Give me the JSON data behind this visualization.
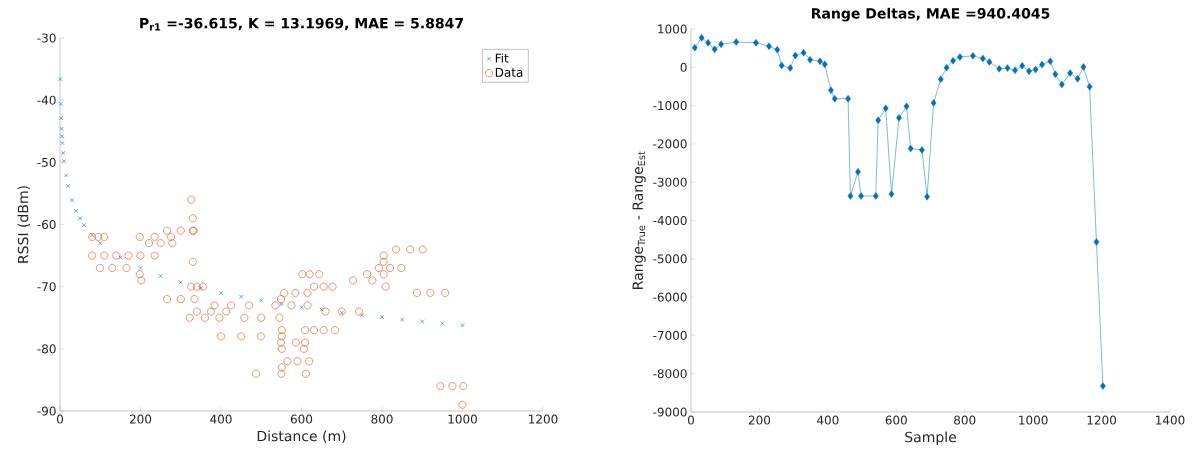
{
  "chart_data": [
    {
      "type": "scatter",
      "title": "P$_{r1}$ =-36.615, K = 13.1969, MAE = 5.8847",
      "xlabel": "Distance (m)",
      "ylabel": "RSSI (dBm)",
      "xlim": [
        0,
        1200
      ],
      "xticks": [
        0,
        200,
        400,
        600,
        800,
        1000,
        1200
      ],
      "ylim": [
        -90,
        -30
      ],
      "yticks": [
        -90,
        -80,
        -70,
        -60,
        -50,
        -40,
        -30
      ],
      "legend": "top right",
      "series": [
        {
          "name": "Fit",
          "type": "scatter",
          "marker": "cross",
          "color": "#0072bd",
          "x": [
            1,
            2,
            3,
            4,
            5,
            6,
            8,
            10,
            15,
            20,
            30,
            40,
            50,
            60,
            80,
            100,
            150,
            200,
            250,
            300,
            350,
            400,
            450,
            500,
            550,
            600,
            650,
            700,
            750,
            800,
            850,
            900,
            950,
            1000
          ],
          "values": [
            -36.6,
            -40.6,
            -42.9,
            -44.6,
            -45.8,
            -46.9,
            -48.5,
            -49.8,
            -52.1,
            -53.8,
            -56.1,
            -57.8,
            -59.0,
            -60.1,
            -61.7,
            -63.0,
            -65.3,
            -67.0,
            -68.3,
            -69.3,
            -70.2,
            -71.0,
            -71.6,
            -72.2,
            -72.8,
            -73.3,
            -73.7,
            -74.2,
            -74.6,
            -74.9,
            -75.3,
            -75.6,
            -75.9,
            -76.2
          ]
        },
        {
          "name": "Data",
          "type": "scatter",
          "marker": "circle",
          "color": "#d95319",
          "x": [
            80,
            95,
            110,
            80,
            110,
            140,
            170,
            200,
            235,
            99,
            130,
            165,
            198,
            202,
            198,
            235,
            276,
            221,
            250,
            279,
            266,
            300,
            330,
            326,
            330,
            332,
            330,
            326,
            340,
            355,
            266,
            300,
            334,
            384,
            425,
            470,
            340,
            375,
            413,
            322,
            360,
            396,
            458,
            500,
            545,
            400,
            450,
            499,
            487,
            550,
            611,
            535,
            575,
            615,
            549,
            557,
            585,
            615,
            551,
            551,
            549,
            586,
            551,
            565,
            590,
            619,
            551,
            602,
            620,
            644,
            631,
            655,
            677,
            609,
            631,
            655,
            683,
            609,
            606,
            660,
            700,
            743,
            728,
            776,
            763,
            804,
            792,
            820,
            848,
            804,
            804,
            809,
            835,
            870,
            901,
            887,
            920,
            957,
            945,
            975,
            1002,
            1000
          ],
          "values": [
            -62,
            -62,
            -62,
            -65,
            -65,
            -65,
            -65,
            -65,
            -65,
            -67,
            -67,
            -67,
            -68,
            -69,
            -62,
            -62,
            -62,
            -63,
            -63,
            -63,
            -61,
            -61,
            -61,
            -56,
            -59,
            -61,
            -66,
            -70,
            -70,
            -70,
            -72,
            -72,
            -72,
            -73,
            -73,
            -73,
            -74,
            -74,
            -74,
            -75,
            -75,
            -75,
            -75,
            -75,
            -75,
            -78,
            -78,
            -78,
            -84,
            -84,
            -84,
            -73,
            -73,
            -73,
            -72,
            -71,
            -71,
            -71,
            -77,
            -78,
            -79,
            -79,
            -80,
            -82,
            -82,
            -82,
            -83,
            -68,
            -68,
            -68,
            -70,
            -70,
            -70,
            -77,
            -77,
            -77,
            -77,
            -79,
            -80,
            -74,
            -74,
            -74,
            -69,
            -69,
            -68,
            -68,
            -67,
            -67,
            -67,
            -65,
            -66,
            -70,
            -64,
            -64,
            -64,
            -71,
            -71,
            -71,
            -86,
            -86,
            -86,
            -89
          ]
        }
      ]
    },
    {
      "type": "line",
      "title": "Range Deltas, MAE =940.4045",
      "xlabel": "Sample",
      "ylabel": "Range$_{True}$ - Range$_{Est}$",
      "xlim": [
        0,
        1400
      ],
      "xticks": [
        0,
        200,
        400,
        600,
        800,
        1000,
        1200,
        1400
      ],
      "ylim": [
        -9000,
        1000
      ],
      "yticks": [
        -9000,
        -8000,
        -7000,
        -6000,
        -5000,
        -4000,
        -3000,
        -2000,
        -1000,
        0,
        1000
      ],
      "marker": "diamond",
      "line_style": "solid",
      "series": [
        {
          "color": "#0072bd",
          "x": [
            11,
            31,
            50,
            69,
            88,
            132,
            190,
            228,
            252,
            265,
            290,
            305,
            329,
            348,
            377,
            391,
            409,
            420,
            459,
            466,
            488,
            497,
            540,
            547,
            569,
            586,
            608,
            630,
            642,
            675,
            690,
            709,
            730,
            747,
            766,
            786,
            824,
            853,
            872,
            901,
            925,
            947,
            968,
            988,
            1007,
            1026,
            1050,
            1065,
            1084,
            1108,
            1130,
            1147,
            1165,
            1185,
            1204
          ],
          "values": [
            510,
            770,
            640,
            470,
            600,
            660,
            640,
            550,
            460,
            50,
            -20,
            310,
            380,
            200,
            160,
            80,
            -600,
            -820,
            -820,
            -3360,
            -2730,
            -3360,
            -3360,
            -1380,
            -1070,
            -3310,
            -1320,
            -1020,
            -2120,
            -2160,
            -3380,
            -930,
            -310,
            -10,
            170,
            270,
            300,
            230,
            140,
            -40,
            -20,
            -80,
            40,
            -100,
            -60,
            70,
            160,
            -180,
            -450,
            -150,
            -300,
            10,
            -510,
            -4560,
            -8320
          ]
        }
      ]
    }
  ]
}
